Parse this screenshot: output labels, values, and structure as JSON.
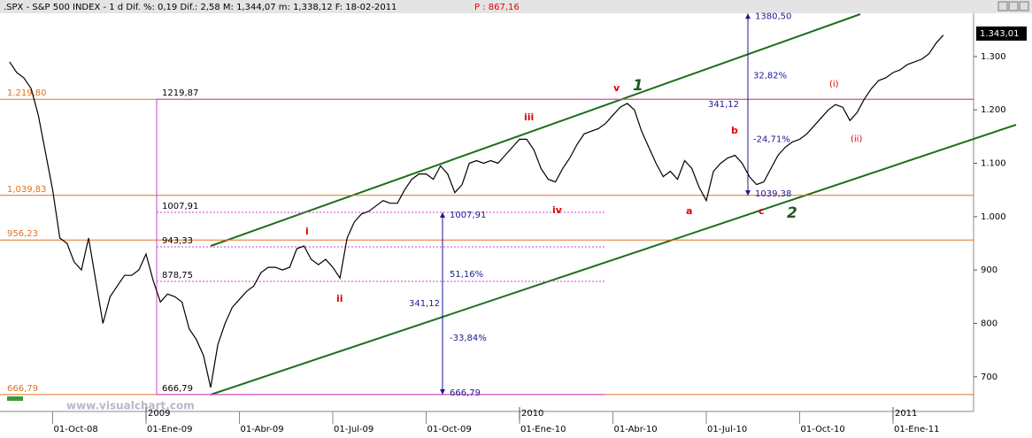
{
  "header": {
    "text": ".SPX - S&P 500 INDEX -  1 d Dif. %: 0,19 Dif.: 2,58 M: 1,344,07 m: 1,338,12 F: 18-02-2011",
    "p_text": "P : 867,16"
  },
  "watermark": "www.visualchart.com",
  "chart_data": {
    "type": "line",
    "categories": [
      null,
      null,
      null,
      null,
      null,
      null,
      "01-Oct-08",
      null,
      null,
      null,
      null,
      null,
      null,
      null,
      null,
      null,
      null,
      null,
      null,
      "01-Ene-09",
      null,
      null,
      null,
      null,
      null,
      null,
      null,
      null,
      null,
      null,
      null,
      null,
      "01-Abr-09",
      null,
      null,
      null,
      null,
      null,
      null,
      null,
      null,
      null,
      null,
      null,
      null,
      "01-Jul-09",
      null,
      null,
      null,
      null,
      null,
      null,
      null,
      null,
      null,
      null,
      null,
      null,
      "01-Oct-09",
      null,
      null,
      null,
      null,
      null,
      null,
      null,
      null,
      null,
      null,
      null,
      null,
      "01-Ene-10",
      null,
      null,
      null,
      null,
      null,
      null,
      null,
      null,
      null,
      null,
      null,
      null,
      "01-Abr-10",
      null,
      null,
      null,
      null,
      null,
      null,
      null,
      null,
      null,
      null,
      null,
      null,
      "01-Jul-10",
      null,
      null,
      null,
      null,
      null,
      null,
      null,
      null,
      null,
      null,
      null,
      null,
      "01-Oct-10",
      null,
      null,
      null,
      null,
      null,
      null,
      null,
      null,
      null,
      null,
      null,
      null,
      "01-Ene-11",
      null,
      null,
      null,
      null,
      null,
      null,
      null
    ],
    "year_labels": [
      null,
      null,
      null,
      null,
      null,
      null,
      null,
      null,
      null,
      null,
      null,
      null,
      null,
      null,
      null,
      null,
      null,
      null,
      null,
      "2009",
      null,
      null,
      null,
      null,
      null,
      null,
      null,
      null,
      null,
      null,
      null,
      null,
      null,
      null,
      null,
      null,
      null,
      null,
      null,
      null,
      null,
      null,
      null,
      null,
      null,
      null,
      null,
      null,
      null,
      null,
      null,
      null,
      null,
      null,
      null,
      null,
      null,
      null,
      null,
      null,
      null,
      null,
      null,
      null,
      null,
      null,
      null,
      null,
      null,
      null,
      null,
      "2010",
      null,
      null,
      null,
      null,
      null,
      null,
      null,
      null,
      null,
      null,
      null,
      null,
      null,
      null,
      null,
      null,
      null,
      null,
      null,
      null,
      null,
      null,
      null,
      null,
      null,
      null,
      null,
      null,
      null,
      null,
      null,
      null,
      null,
      null,
      null,
      null,
      null,
      null,
      null,
      null,
      null,
      null,
      null,
      null,
      null,
      null,
      null,
      null,
      null,
      null,
      null,
      "2011",
      null,
      null,
      null,
      null,
      null,
      null,
      null
    ],
    "series": [
      {
        "name": ".SPX",
        "color": "#000000",
        "values": [
          1290,
          1270,
          1260,
          1240,
          1190,
          1120,
          1050,
          960,
          950,
          915,
          900,
          960,
          880,
          800,
          850,
          870,
          890,
          890,
          900,
          930,
          880,
          840,
          855,
          850,
          840,
          790,
          770,
          740,
          680,
          760,
          800,
          830,
          845,
          860,
          870,
          895,
          905,
          905,
          900,
          905,
          940,
          945,
          920,
          910,
          920,
          905,
          885,
          960,
          990,
          1005,
          1010,
          1020,
          1030,
          1025,
          1025,
          1050,
          1070,
          1080,
          1080,
          1070,
          1095,
          1080,
          1045,
          1060,
          1100,
          1105,
          1100,
          1105,
          1100,
          1115,
          1130,
          1145,
          1145,
          1125,
          1090,
          1070,
          1065,
          1090,
          1110,
          1135,
          1155,
          1160,
          1165,
          1175,
          1190,
          1205,
          1212,
          1200,
          1160,
          1130,
          1100,
          1075,
          1085,
          1070,
          1105,
          1090,
          1055,
          1030,
          1085,
          1100,
          1110,
          1115,
          1100,
          1075,
          1060,
          1065,
          1090,
          1115,
          1130,
          1140,
          1145,
          1155,
          1170,
          1185,
          1200,
          1210,
          1205,
          1180,
          1195,
          1220,
          1240,
          1255,
          1260,
          1270,
          1275,
          1285,
          1290,
          1295,
          1305,
          1325,
          1340
        ]
      }
    ],
    "last_price": {
      "value": 1343.01,
      "label": "1.343,01"
    },
    "ylim": [
      635,
      1381
    ],
    "yticks": [
      700,
      {
        "value": 800,
        "label": "800"
      },
      900,
      {
        "value": 1000,
        "label": "1.000"
      },
      {
        "value": 1100,
        "label": "1.100"
      },
      {
        "value": 1200,
        "label": "1.200"
      },
      {
        "value": 1300,
        "label": "1.300"
      }
    ],
    "levels": [
      {
        "value": 1219.8,
        "label": "1.219,80"
      },
      {
        "value": 1039.83,
        "label": "1,039,83"
      },
      {
        "value": 956.23,
        "label": "956,23"
      },
      {
        "value": 666.79,
        "label": "666,79"
      }
    ],
    "fib_levels": [
      {
        "value": 1219.87,
        "label": "1219,87"
      },
      {
        "value": 1007.91,
        "label": "1007,91"
      },
      {
        "value": 943.33,
        "label": "943,33"
      },
      {
        "value": 878.75,
        "label": "878,75"
      },
      {
        "value": 666.79,
        "label": "666,79"
      }
    ],
    "measures": [
      {
        "top": 1007.91,
        "top_label": "1007,91",
        "bottom": 666.79,
        "bottom_label": "666,79",
        "range_label": "341,12",
        "up_label": "51,16%",
        "down_label": "-33,84%"
      },
      {
        "top": 1380.5,
        "top_label": "1380,50",
        "bottom": 1039.38,
        "bottom_label": "1039,38",
        "range_label": "341,12",
        "up_label": "32,82%",
        "down_label": "-24,71%"
      }
    ],
    "waves": [
      "i",
      "ii",
      "iii",
      "iv",
      "v",
      "1",
      "a",
      "b",
      "c",
      "2",
      "(i)",
      "(ii)"
    ]
  }
}
